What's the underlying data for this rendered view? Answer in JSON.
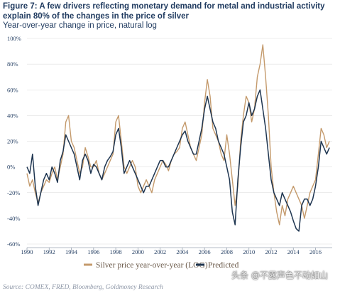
{
  "title": "Figure 7: A few drivers reflecting monetary demand for metal and industrial activity explain 80% of the changes in the price of silver",
  "subtitle": "Year-over-year change in price, natural log",
  "source": "Source: COMEX, FRED, Bloomberg, Goldmoney Research",
  "watermark": "头条 @不露声色不动如山",
  "colors": {
    "actual": "#c49a6c",
    "predicted": "#1e3550",
    "text": "#1f3a5f",
    "grid": "#d9d9d9"
  },
  "chart_data": {
    "type": "line",
    "title": "",
    "xlabel": "",
    "ylabel": "",
    "xlim": [
      1990,
      2017.5
    ],
    "ylim": [
      -0.6,
      1.0
    ],
    "grid": true,
    "legend_position": "bottom",
    "y_ticks": [
      {
        "value": 1.0,
        "label": "100%"
      },
      {
        "value": 0.8,
        "label": "80%"
      },
      {
        "value": 0.6,
        "label": "60%"
      },
      {
        "value": 0.4,
        "label": "40%"
      },
      {
        "value": 0.2,
        "label": "20%"
      },
      {
        "value": 0.0,
        "label": "0%"
      },
      {
        "value": -0.2,
        "label": "-20%"
      },
      {
        "value": -0.4,
        "label": "-40%"
      },
      {
        "value": -0.6,
        "label": "-60%"
      }
    ],
    "x_ticks": [
      {
        "value": 1990,
        "label": "1990"
      },
      {
        "value": 1992,
        "label": "1992"
      },
      {
        "value": 1994,
        "label": "1994"
      },
      {
        "value": 1996,
        "label": "1996"
      },
      {
        "value": 1998,
        "label": "1998"
      },
      {
        "value": 2000,
        "label": "2000"
      },
      {
        "value": 2002,
        "label": "2002"
      },
      {
        "value": 2004,
        "label": "2004"
      },
      {
        "value": 2006,
        "label": "2006"
      },
      {
        "value": 2008,
        "label": "2008"
      },
      {
        "value": 2010,
        "label": "2010"
      },
      {
        "value": 2012,
        "label": "2012"
      },
      {
        "value": 2014,
        "label": "2014"
      },
      {
        "value": 2016,
        "label": "2016"
      }
    ],
    "series": [
      {
        "name": "Silver price year-over-year (LOG)",
        "color": "#c49a6c",
        "x": [
          1990.0,
          1990.25,
          1990.5,
          1990.75,
          1991.0,
          1991.25,
          1991.5,
          1991.75,
          1992.0,
          1992.25,
          1992.5,
          1992.75,
          1993.0,
          1993.25,
          1993.5,
          1993.75,
          1994.0,
          1994.25,
          1994.5,
          1994.75,
          1995.0,
          1995.25,
          1995.5,
          1995.75,
          1996.0,
          1996.25,
          1996.5,
          1996.75,
          1997.0,
          1997.25,
          1997.5,
          1997.75,
          1998.0,
          1998.25,
          1998.5,
          1998.75,
          1999.0,
          1999.25,
          1999.5,
          1999.75,
          2000.0,
          2000.25,
          2000.5,
          2000.75,
          2001.0,
          2001.25,
          2001.5,
          2001.75,
          2002.0,
          2002.25,
          2002.5,
          2002.75,
          2003.0,
          2003.25,
          2003.5,
          2003.75,
          2004.0,
          2004.25,
          2004.5,
          2004.75,
          2005.0,
          2005.25,
          2005.5,
          2005.75,
          2006.0,
          2006.25,
          2006.5,
          2006.75,
          2007.0,
          2007.25,
          2007.5,
          2007.75,
          2008.0,
          2008.25,
          2008.5,
          2008.75,
          2009.0,
          2009.25,
          2009.5,
          2009.75,
          2010.0,
          2010.25,
          2010.5,
          2010.75,
          2011.0,
          2011.25,
          2011.5,
          2011.75,
          2012.0,
          2012.25,
          2012.5,
          2012.75,
          2013.0,
          2013.25,
          2013.5,
          2013.75,
          2014.0,
          2014.25,
          2014.5,
          2014.75,
          2015.0,
          2015.25,
          2015.5,
          2015.75,
          2016.0,
          2016.25,
          2016.5,
          2016.75,
          2017.0,
          2017.25
        ],
        "values": [
          -0.05,
          -0.15,
          -0.1,
          -0.2,
          -0.28,
          -0.2,
          -0.15,
          -0.1,
          -0.12,
          -0.05,
          0.0,
          -0.1,
          0.0,
          0.1,
          0.35,
          0.4,
          0.2,
          0.15,
          0.05,
          -0.05,
          0.0,
          0.15,
          0.08,
          0.0,
          0.0,
          0.05,
          -0.05,
          -0.1,
          -0.05,
          0.0,
          0.05,
          0.1,
          0.35,
          0.4,
          0.2,
          0.0,
          -0.05,
          0.0,
          0.05,
          0.0,
          -0.15,
          -0.2,
          -0.15,
          -0.1,
          -0.15,
          -0.2,
          -0.1,
          -0.05,
          0.0,
          0.05,
          0.02,
          -0.03,
          0.05,
          0.1,
          0.12,
          0.15,
          0.3,
          0.35,
          0.25,
          0.15,
          0.1,
          0.05,
          0.15,
          0.25,
          0.5,
          0.68,
          0.55,
          0.3,
          0.25,
          0.2,
          0.1,
          0.05,
          0.25,
          0.1,
          -0.1,
          -0.3,
          -0.15,
          0.2,
          0.4,
          0.55,
          0.5,
          0.35,
          0.45,
          0.7,
          0.8,
          0.95,
          0.7,
          0.4,
          0.0,
          -0.2,
          -0.35,
          -0.45,
          -0.3,
          -0.38,
          -0.25,
          -0.2,
          -0.15,
          -0.2,
          -0.25,
          -0.3,
          -0.4,
          -0.3,
          -0.2,
          -0.15,
          -0.1,
          0.1,
          0.3,
          0.25,
          0.15,
          0.2
        ]
      },
      {
        "name": "Predicted",
        "color": "#1e3550",
        "x": [
          1990.0,
          1990.25,
          1990.5,
          1990.75,
          1991.0,
          1991.25,
          1991.5,
          1991.75,
          1992.0,
          1992.25,
          1992.5,
          1992.75,
          1993.0,
          1993.25,
          1993.5,
          1993.75,
          1994.0,
          1994.25,
          1994.5,
          1994.75,
          1995.0,
          1995.25,
          1995.5,
          1995.75,
          1996.0,
          1996.25,
          1996.5,
          1996.75,
          1997.0,
          1997.25,
          1997.5,
          1997.75,
          1998.0,
          1998.25,
          1998.5,
          1998.75,
          1999.0,
          1999.25,
          1999.5,
          1999.75,
          2000.0,
          2000.25,
          2000.5,
          2000.75,
          2001.0,
          2001.25,
          2001.5,
          2001.75,
          2002.0,
          2002.25,
          2002.5,
          2002.75,
          2003.0,
          2003.25,
          2003.5,
          2003.75,
          2004.0,
          2004.25,
          2004.5,
          2004.75,
          2005.0,
          2005.25,
          2005.5,
          2005.75,
          2006.0,
          2006.25,
          2006.5,
          2006.75,
          2007.0,
          2007.25,
          2007.5,
          2007.75,
          2008.0,
          2008.25,
          2008.5,
          2008.75,
          2009.0,
          2009.25,
          2009.5,
          2009.75,
          2010.0,
          2010.25,
          2010.5,
          2010.75,
          2011.0,
          2011.25,
          2011.5,
          2011.75,
          2012.0,
          2012.25,
          2012.5,
          2012.75,
          2013.0,
          2013.25,
          2013.5,
          2013.75,
          2014.0,
          2014.25,
          2014.5,
          2014.75,
          2015.0,
          2015.25,
          2015.5,
          2015.75,
          2016.0,
          2016.25,
          2016.5,
          2016.75,
          2017.0,
          2017.25
        ],
        "values": [
          0.0,
          -0.05,
          0.1,
          -0.15,
          -0.3,
          -0.2,
          -0.1,
          -0.05,
          -0.1,
          0.0,
          -0.05,
          -0.12,
          0.05,
          0.12,
          0.25,
          0.2,
          0.15,
          0.1,
          0.0,
          -0.1,
          0.05,
          0.1,
          0.05,
          -0.05,
          0.02,
          0.0,
          -0.05,
          -0.1,
          0.0,
          0.05,
          0.08,
          0.12,
          0.25,
          0.3,
          0.15,
          -0.05,
          0.0,
          0.05,
          0.0,
          -0.05,
          -0.1,
          -0.15,
          -0.2,
          -0.15,
          -0.15,
          -0.1,
          -0.05,
          0.0,
          0.05,
          0.05,
          0.0,
          0.0,
          0.05,
          0.1,
          0.15,
          0.2,
          0.25,
          0.28,
          0.2,
          0.15,
          0.1,
          0.1,
          0.2,
          0.3,
          0.45,
          0.55,
          0.45,
          0.35,
          0.3,
          0.2,
          0.15,
          0.1,
          0.0,
          -0.1,
          -0.35,
          -0.45,
          -0.1,
          0.15,
          0.35,
          0.4,
          0.5,
          0.4,
          0.45,
          0.55,
          0.6,
          0.45,
          0.3,
          0.1,
          -0.1,
          -0.2,
          -0.25,
          -0.3,
          -0.2,
          -0.25,
          -0.3,
          -0.35,
          -0.42,
          -0.48,
          -0.5,
          -0.3,
          -0.25,
          -0.25,
          -0.3,
          -0.25,
          -0.15,
          0.0,
          0.2,
          0.15,
          0.1,
          0.15
        ]
      }
    ]
  }
}
